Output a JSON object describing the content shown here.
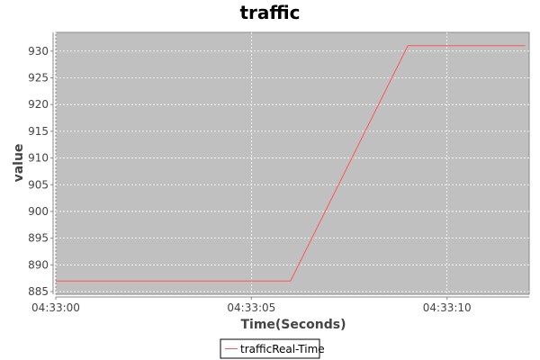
{
  "chart_data": {
    "type": "line",
    "title": "traffic",
    "xlabel": "Time(Seconds)",
    "ylabel": "value",
    "x_tick_labels": [
      "04:33:00",
      "04:33:05",
      "04:33:10"
    ],
    "y_ticks": [
      885,
      890,
      895,
      900,
      905,
      910,
      915,
      920,
      925,
      930
    ],
    "xlim": [
      "04:33:00",
      "04:33:12.1"
    ],
    "ylim": [
      884.5,
      933.5
    ],
    "grid": true,
    "legend_position": "bottom-center",
    "series": [
      {
        "name": "trafficReal-Time",
        "color": "#ff5555",
        "x": [
          "04:33:00",
          "04:33:06",
          "04:33:09",
          "04:33:12"
        ],
        "y": [
          887,
          887,
          931,
          931
        ]
      }
    ]
  },
  "colors": {
    "plot_background": "#c0c0c0",
    "grid": "#ffffff",
    "axis": "#888888"
  }
}
